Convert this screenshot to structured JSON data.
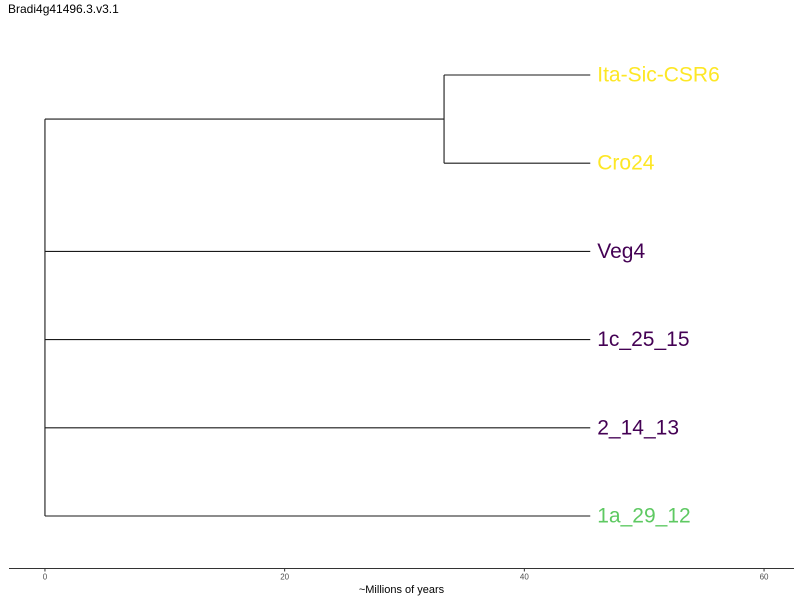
{
  "title": "Bradi4g41496.3.v3.1",
  "axis": {
    "label": "~Millions of years",
    "ticks": [
      0,
      20,
      40,
      60
    ],
    "range": [
      -3,
      62.5
    ]
  },
  "chart_data": {
    "type": "dendrogram",
    "title": "Bradi4g41496.3.v3.1",
    "xlabel": "~Millions of years",
    "xlim": [
      -3,
      62.5
    ],
    "internal_nodes": [
      {
        "id": "root",
        "time": 0
      },
      {
        "id": "n1",
        "time": 33.3,
        "children": [
          "Ita-Sic-CSR6",
          "Cro24"
        ]
      }
    ],
    "leaves": [
      {
        "name": "Ita-Sic-CSR6",
        "color": "#FDE725",
        "tip_time": 45.5,
        "parent": "n1"
      },
      {
        "name": "Cro24",
        "color": "#FDE725",
        "tip_time": 45.5,
        "parent": "n1"
      },
      {
        "name": "Veg4",
        "color": "#440154",
        "tip_time": 45.5,
        "parent": "root"
      },
      {
        "name": "1c_25_15",
        "color": "#440154",
        "tip_time": 45.5,
        "parent": "root"
      },
      {
        "name": "2_14_13",
        "color": "#440154",
        "tip_time": 45.5,
        "parent": "root"
      },
      {
        "name": "1a_29_12",
        "color": "#5EC962",
        "tip_time": 45.5,
        "parent": "root"
      }
    ]
  }
}
